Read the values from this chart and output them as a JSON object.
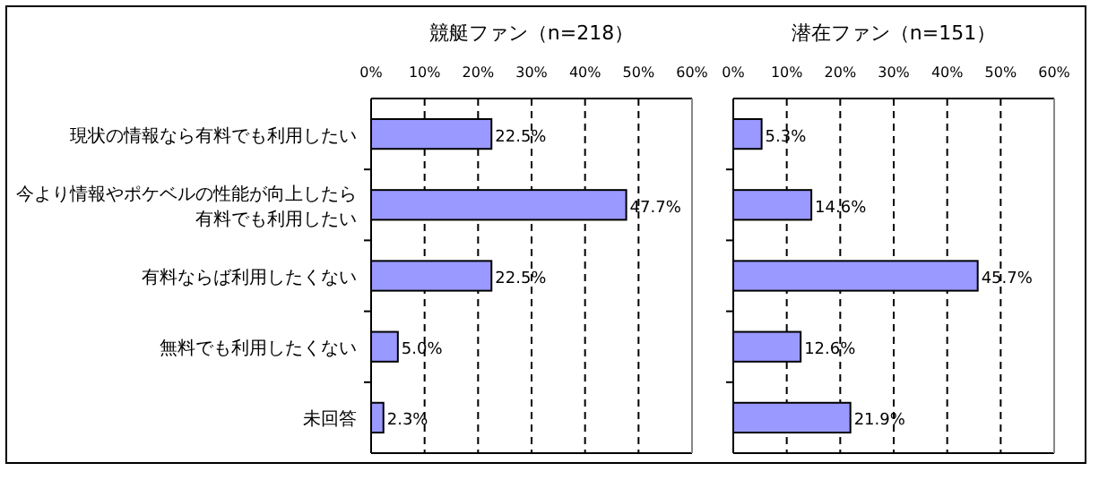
{
  "chart_data": [
    {
      "type": "bar",
      "orientation": "horizontal",
      "title": "競艇ファン（n=218）",
      "categories": [
        "現状の情報なら有料でも利用したい",
        "今より情報やポケベルの性能が向上したら有料でも利用したい",
        "有料ならば利用したくない",
        "無料でも利用したくない",
        "未回答"
      ],
      "values": [
        22.5,
        47.7,
        22.5,
        5.0,
        2.3
      ],
      "value_labels": [
        "22.5%",
        "47.7%",
        "22.5%",
        "5.0%",
        "2.3%"
      ],
      "color": "#9999ff",
      "xlim": [
        0,
        60
      ],
      "xticks": [
        {
          "value": 0,
          "label": "0%"
        },
        {
          "value": 10,
          "label": "10%"
        },
        {
          "value": 20,
          "label": "20%"
        },
        {
          "value": 30,
          "label": "30%"
        },
        {
          "value": 40,
          "label": "40%"
        },
        {
          "value": 50,
          "label": "50%"
        },
        {
          "value": 60,
          "label": "60%"
        }
      ],
      "grid": "x"
    },
    {
      "type": "bar",
      "orientation": "horizontal",
      "title": "潜在ファン（n=151）",
      "categories": [
        "現状の情報なら有料でも利用したい",
        "今より情報やポケベルの性能が向上したら有料でも利用したい",
        "有料ならば利用したくない",
        "無料でも利用したくない",
        "未回答"
      ],
      "values": [
        5.3,
        14.6,
        45.7,
        12.6,
        21.9
      ],
      "value_labels": [
        "5.3%",
        "14.6%",
        "45.7%",
        "12.6%",
        "21.9%"
      ],
      "color": "#9999ff",
      "xlim": [
        0,
        60
      ],
      "xticks": [
        {
          "value": 0,
          "label": "0%"
        },
        {
          "value": 10,
          "label": "10%"
        },
        {
          "value": 20,
          "label": "20%"
        },
        {
          "value": 30,
          "label": "30%"
        },
        {
          "value": 40,
          "label": "40%"
        },
        {
          "value": 50,
          "label": "50%"
        },
        {
          "value": 60,
          "label": "60%"
        }
      ],
      "grid": "x",
      "tick_labels": "x"
    }
  ]
}
